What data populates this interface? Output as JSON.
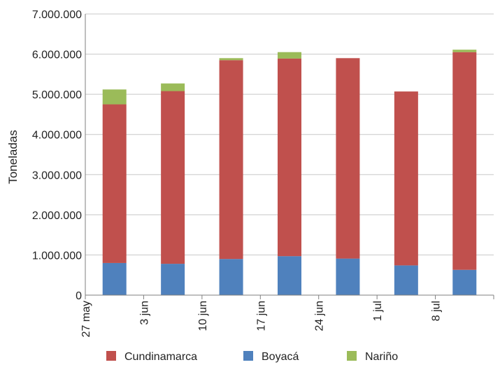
{
  "chart_data": {
    "type": "bar",
    "stacked": true,
    "title": "",
    "xlabel": "",
    "ylabel": "Toneladas",
    "ylim": [
      0,
      7000000
    ],
    "yticks": [
      0,
      1000000,
      2000000,
      3000000,
      4000000,
      5000000,
      6000000,
      7000000
    ],
    "ytick_labels": [
      "0",
      "1.000.000",
      "2.000.000",
      "3.000.000",
      "4.000.000",
      "5.000.000",
      "6.000.000",
      "7.000.000"
    ],
    "categories": [
      "27 may",
      "3 jun",
      "10 jun",
      "17 jun",
      "24 jun",
      "1 jul",
      "8 jul"
    ],
    "grid": "horizontal",
    "legend_position": "bottom",
    "series": [
      {
        "name": "Boyacá",
        "color": "#4f81bd",
        "values": [
          800000,
          780000,
          900000,
          970000,
          910000,
          740000,
          630000
        ]
      },
      {
        "name": "Cundinamarca",
        "color": "#c0504d",
        "values": [
          3950000,
          4300000,
          4950000,
          4920000,
          4990000,
          4330000,
          5420000
        ]
      },
      {
        "name": "Nariño",
        "color": "#9bbb59",
        "values": [
          370000,
          190000,
          50000,
          160000,
          0,
          0,
          60000
        ]
      }
    ],
    "legend_order": [
      "Cundinamarca",
      "Boyacá",
      "Nariño"
    ]
  }
}
